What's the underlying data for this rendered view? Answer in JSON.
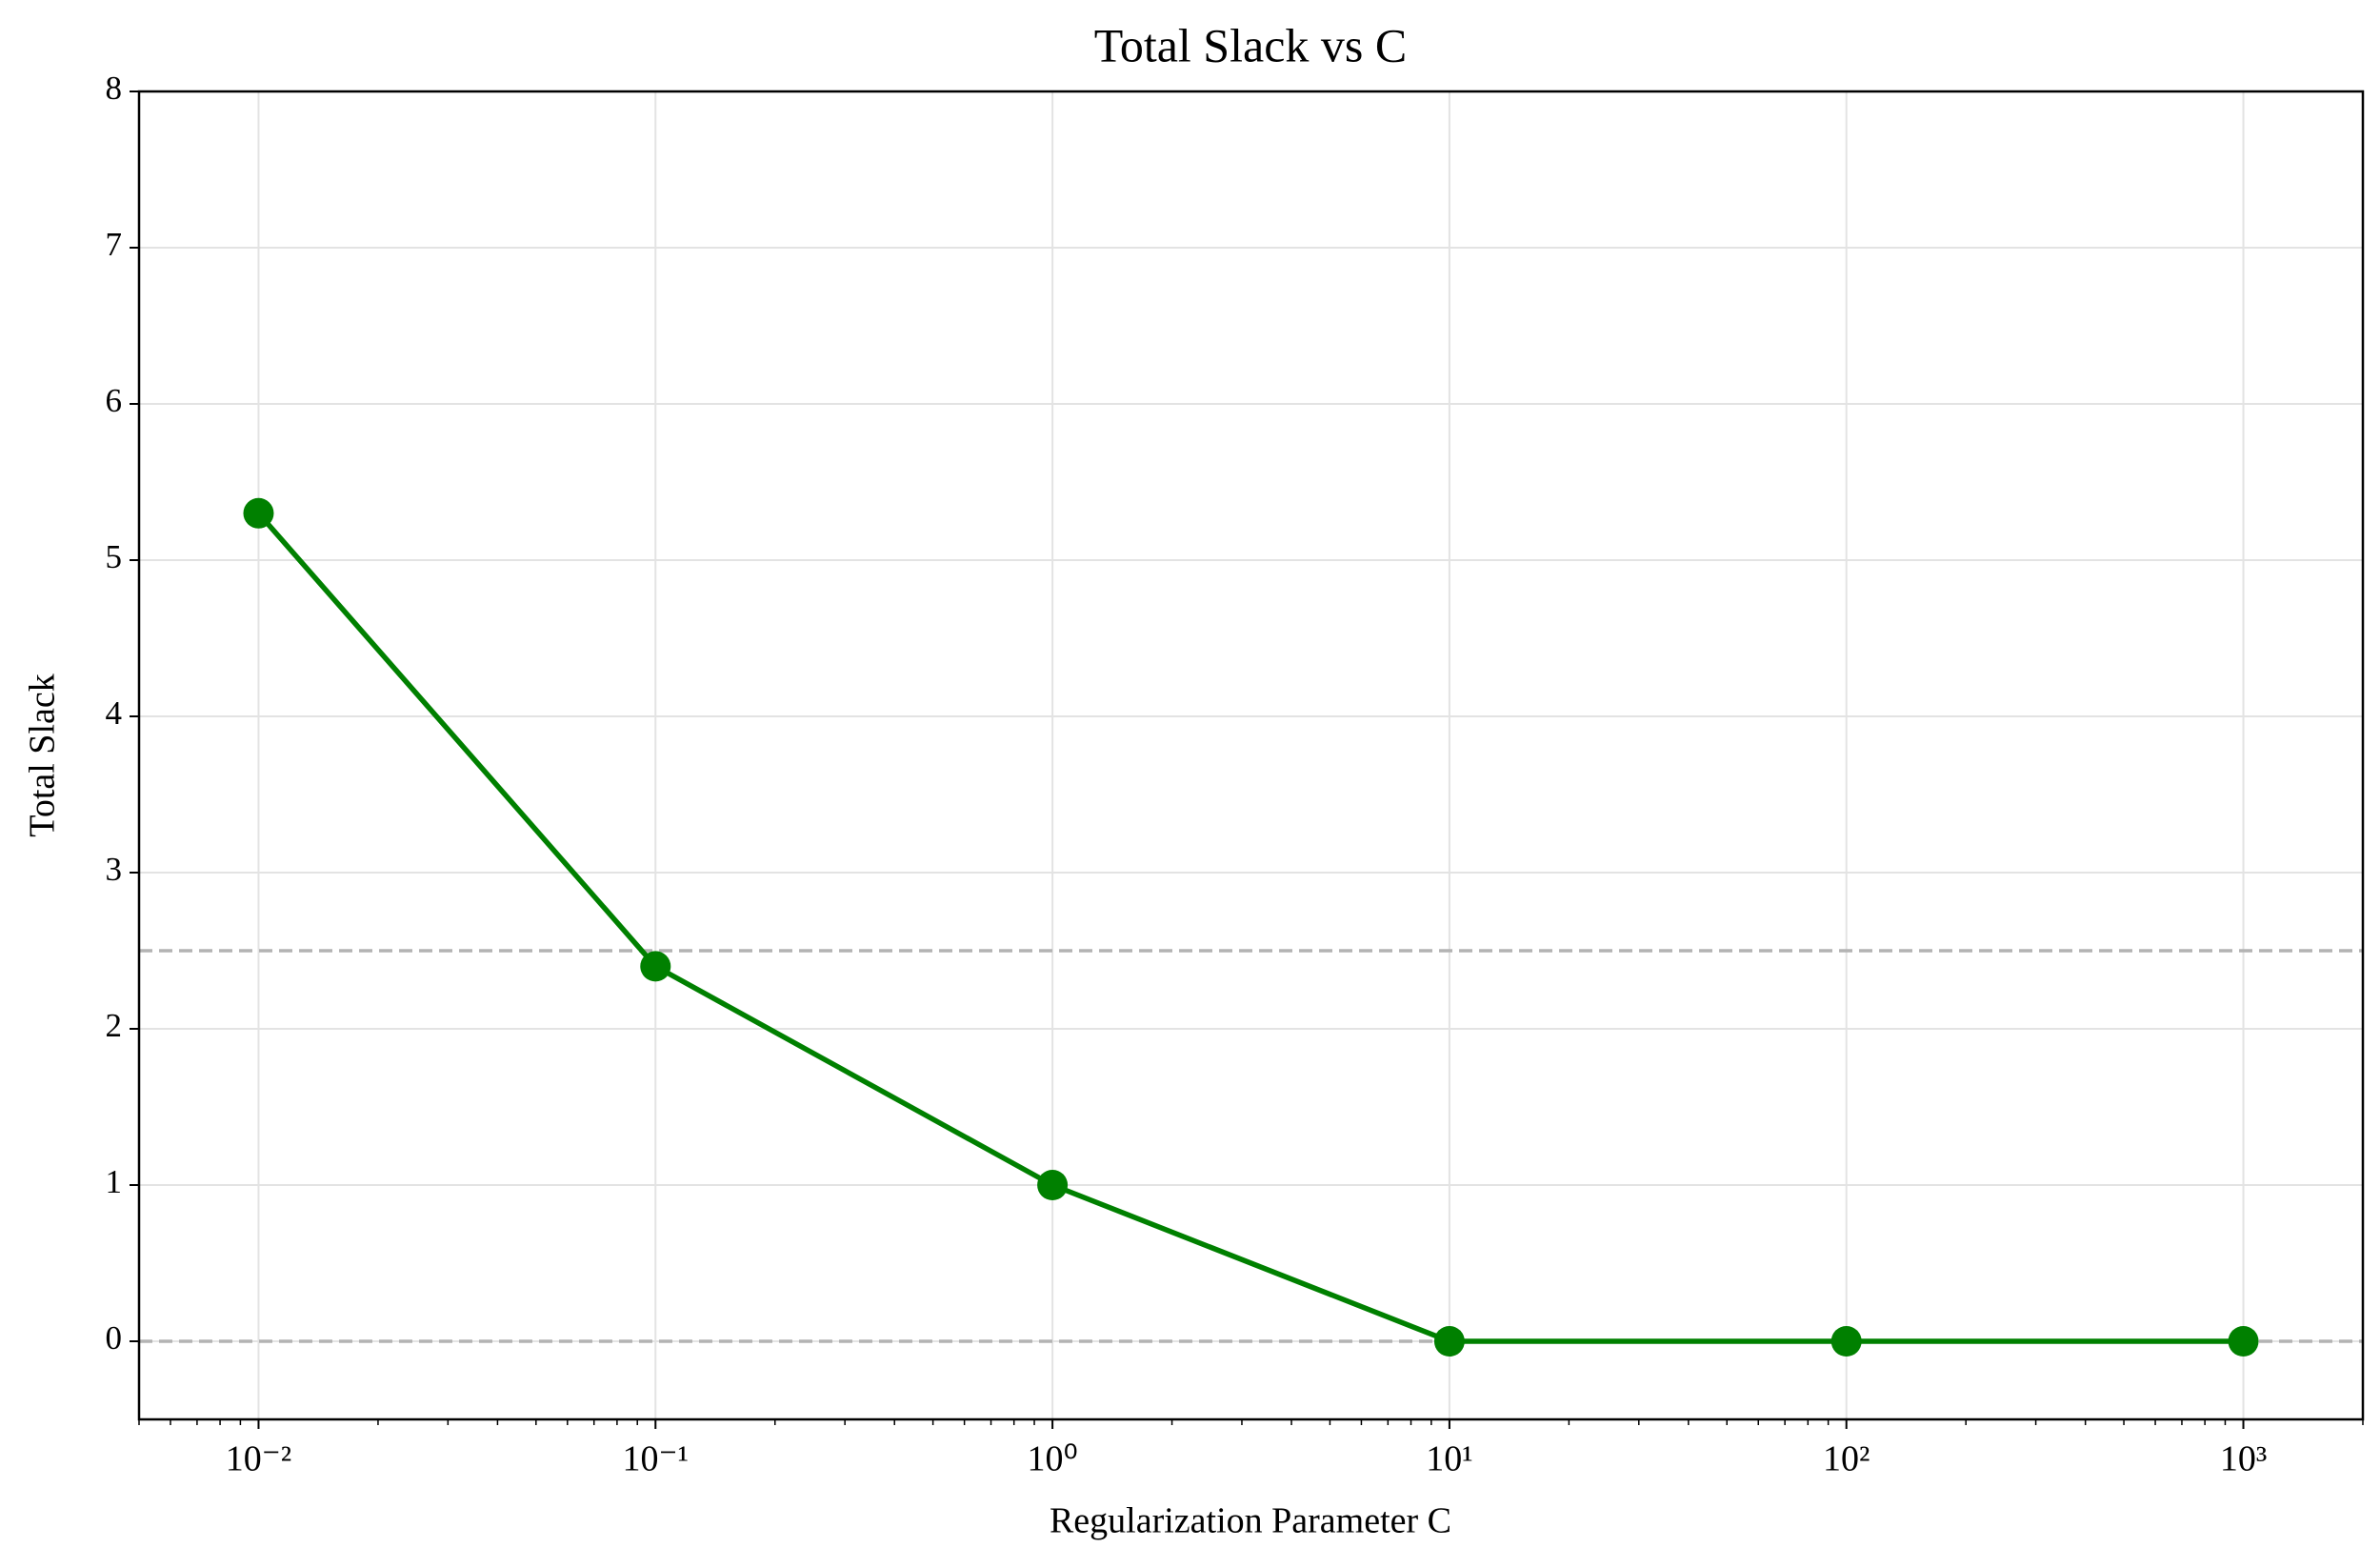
{
  "chart_data": {
    "type": "line",
    "title": "Total Slack vs C",
    "x_label": "Regularization Parameter C",
    "y_label": "Total Slack",
    "x": [
      0.01,
      0.1,
      1,
      10,
      100,
      1000
    ],
    "series": [
      {
        "name": "Total Slack",
        "color": "#008000",
        "values": [
          5.3,
          2.4,
          1.0,
          0,
          0,
          0
        ]
      }
    ],
    "xscale": "log",
    "xlim": [
      0.005,
      2000
    ],
    "xticks": [
      {
        "value": 0.01,
        "label": "10⁻²"
      },
      {
        "value": 0.1,
        "label": "10⁻¹"
      },
      {
        "value": 1,
        "label": "10⁰"
      },
      {
        "value": 10,
        "label": "10¹"
      },
      {
        "value": 100,
        "label": "10²"
      },
      {
        "value": 1000,
        "label": "10³"
      }
    ],
    "xminor_ticks": [
      0.005,
      0.006,
      0.007,
      0.008,
      0.009,
      0.02,
      0.03,
      0.04,
      0.05,
      0.06,
      0.07,
      0.08,
      0.09,
      0.2,
      0.3,
      0.4,
      0.5,
      0.6,
      0.7,
      0.8,
      0.9,
      2,
      3,
      4,
      5,
      6,
      7,
      8,
      9,
      20,
      30,
      40,
      50,
      60,
      70,
      80,
      90,
      200,
      300,
      400,
      500,
      600,
      700,
      800,
      900,
      2000
    ],
    "ylim": [
      -0.5,
      8
    ],
    "yticks": [
      0,
      1,
      2,
      3,
      4,
      5,
      6,
      7,
      8
    ],
    "hlines": [
      2.5,
      0
    ],
    "hline_color": "#b3b3b3",
    "grid": true
  }
}
